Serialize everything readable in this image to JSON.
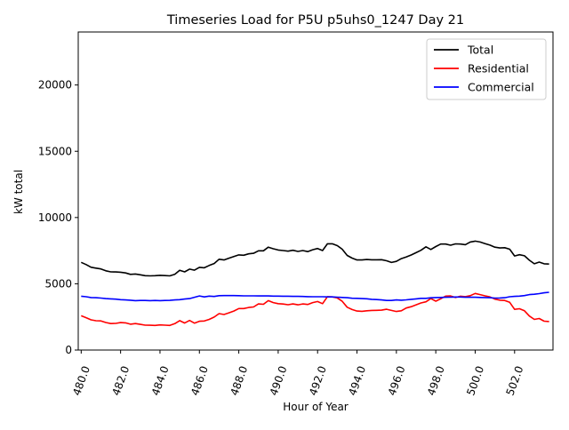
{
  "chart_data": {
    "type": "line",
    "title": "Timeseries Load for P5U p5uhs0_1247  Day 21",
    "xlabel": "Hour of Year",
    "ylabel": "kW total",
    "xlim": [
      479.85,
      503.95
    ],
    "ylim": [
      0,
      24000
    ],
    "xticks": [
      480,
      482,
      484,
      486,
      488,
      490,
      492,
      494,
      496,
      498,
      500,
      502
    ],
    "xtick_labels": [
      "480.0",
      "482.0",
      "484.0",
      "486.0",
      "488.0",
      "490.0",
      "492.0",
      "494.0",
      "496.0",
      "498.0",
      "500.0",
      "502.0"
    ],
    "yticks": [
      0,
      5000,
      10000,
      15000,
      20000
    ],
    "ytick_labels": [
      "0",
      "5000",
      "10000",
      "15000",
      "20000"
    ],
    "legend_position": "top-right",
    "x": [
      480.0,
      480.25,
      480.5,
      480.75,
      481.0,
      481.25,
      481.5,
      481.75,
      482.0,
      482.25,
      482.5,
      482.75,
      483.0,
      483.25,
      483.5,
      483.75,
      484.0,
      484.25,
      484.5,
      484.75,
      485.0,
      485.25,
      485.5,
      485.75,
      486.0,
      486.25,
      486.5,
      486.75,
      487.0,
      487.25,
      487.5,
      487.75,
      488.0,
      488.25,
      488.5,
      488.75,
      489.0,
      489.25,
      489.5,
      489.75,
      490.0,
      490.25,
      490.5,
      490.75,
      491.0,
      491.25,
      491.5,
      491.75,
      492.0,
      492.25,
      492.5,
      492.75,
      493.0,
      493.25,
      493.5,
      493.75,
      494.0,
      494.25,
      494.5,
      494.75,
      495.0,
      495.25,
      495.5,
      495.75,
      496.0,
      496.25,
      496.5,
      496.75,
      497.0,
      497.25,
      497.5,
      497.75,
      498.0,
      498.25,
      498.5,
      498.75,
      499.0,
      499.25,
      499.5,
      499.75,
      500.0,
      500.25,
      500.5,
      500.75,
      501.0,
      501.25,
      501.5,
      501.75,
      502.0,
      502.25,
      502.5,
      502.75,
      503.0,
      503.25,
      503.5,
      503.75
    ],
    "series": [
      {
        "name": "Total",
        "color": "#000000",
        "values": [
          6620,
          6450,
          6250,
          6180,
          6120,
          5980,
          5900,
          5890,
          5870,
          5820,
          5710,
          5740,
          5680,
          5610,
          5600,
          5610,
          5640,
          5620,
          5600,
          5720,
          6020,
          5900,
          6110,
          6030,
          6240,
          6210,
          6380,
          6530,
          6850,
          6800,
          6930,
          7060,
          7180,
          7150,
          7260,
          7300,
          7490,
          7490,
          7760,
          7640,
          7550,
          7510,
          7460,
          7530,
          7440,
          7510,
          7430,
          7570,
          7660,
          7510,
          8020,
          8020,
          7880,
          7610,
          7140,
          6940,
          6800,
          6800,
          6830,
          6810,
          6810,
          6820,
          6740,
          6610,
          6690,
          6900,
          7020,
          7170,
          7350,
          7530,
          7790,
          7590,
          7810,
          8000,
          8000,
          7910,
          8010,
          8000,
          7950,
          8150,
          8220,
          8150,
          8030,
          7920,
          7760,
          7700,
          7720,
          7610,
          7100,
          7190,
          7110,
          6780,
          6510,
          6640,
          6510,
          6490
        ]
      },
      {
        "name": "Residential",
        "color": "#ff0000",
        "values": [
          2590,
          2440,
          2280,
          2210,
          2200,
          2080,
          2000,
          2010,
          2070,
          2050,
          1950,
          2000,
          1940,
          1880,
          1870,
          1860,
          1900,
          1880,
          1860,
          1990,
          2220,
          2040,
          2230,
          2030,
          2170,
          2190,
          2310,
          2490,
          2750,
          2680,
          2810,
          2940,
          3130,
          3130,
          3210,
          3250,
          3480,
          3450,
          3730,
          3580,
          3500,
          3470,
          3420,
          3480,
          3410,
          3480,
          3440,
          3580,
          3660,
          3500,
          4030,
          4010,
          3930,
          3680,
          3230,
          3060,
          2940,
          2920,
          2960,
          2990,
          3000,
          3010,
          3080,
          2990,
          2910,
          2960,
          3170,
          3270,
          3410,
          3550,
          3640,
          3880,
          3690,
          3870,
          4070,
          4080,
          3960,
          4060,
          4030,
          4100,
          4270,
          4180,
          4090,
          4010,
          3840,
          3760,
          3740,
          3600,
          3070,
          3120,
          2960,
          2570,
          2310,
          2380,
          2180,
          2150
        ]
      },
      {
        "name": "Commercial",
        "color": "#0000ff",
        "values": [
          4060,
          4020,
          3960,
          3950,
          3920,
          3880,
          3860,
          3840,
          3800,
          3780,
          3760,
          3730,
          3740,
          3740,
          3730,
          3740,
          3730,
          3740,
          3750,
          3780,
          3800,
          3850,
          3880,
          3980,
          4080,
          4010,
          4070,
          4040,
          4100,
          4110,
          4110,
          4110,
          4100,
          4090,
          4090,
          4090,
          4080,
          4080,
          4080,
          4070,
          4070,
          4060,
          4060,
          4050,
          4050,
          4040,
          4030,
          4020,
          4020,
          4020,
          4010,
          4010,
          3990,
          3970,
          3950,
          3910,
          3900,
          3880,
          3870,
          3830,
          3810,
          3780,
          3740,
          3740,
          3780,
          3760,
          3790,
          3830,
          3860,
          3900,
          3900,
          3940,
          3960,
          3970,
          3980,
          3990,
          4000,
          4000,
          3980,
          3980,
          3980,
          3970,
          3960,
          3950,
          3920,
          3930,
          3950,
          4020,
          4050,
          4070,
          4110,
          4180,
          4210,
          4260,
          4320,
          4360
        ]
      }
    ]
  }
}
